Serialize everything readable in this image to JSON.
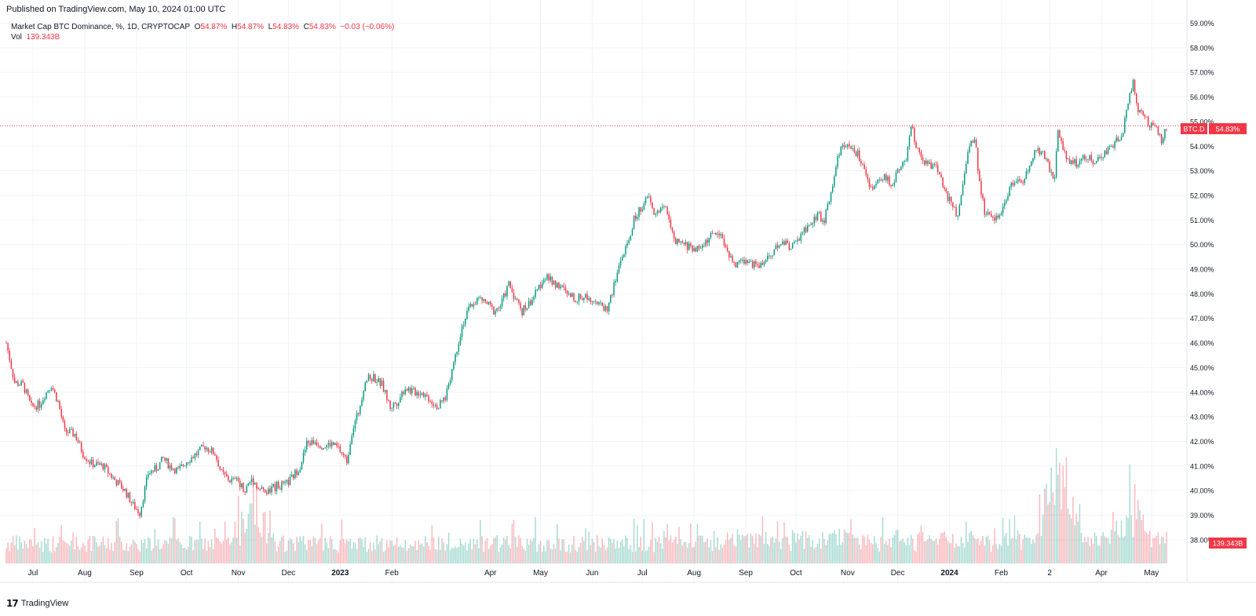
{
  "header": {
    "published": "Published on TradingView.com, May 10, 2024 01:00 UTC"
  },
  "legend": {
    "title": "Market Cap BTC Dominance, %, 1D, CRYPTOCAP",
    "o_label": "O",
    "o_value": "54.87%",
    "h_label": "H",
    "h_value": "54.87%",
    "l_label": "L",
    "l_value": "54.83%",
    "c_label": "C",
    "c_value": "54.83%",
    "change": "−0.03 (−0.06%)",
    "vol_label": "Vol",
    "vol_value": "139.343B"
  },
  "price_badge": {
    "symbol": "BTC.D",
    "value": "54.83%"
  },
  "vol_badge": {
    "value": "139.343B"
  },
  "footer": {
    "logo": "TradingView"
  },
  "colors": {
    "up": "#089981",
    "down": "#f23645",
    "grid": "#f0f3fa"
  },
  "chart_data": {
    "type": "candlestick",
    "title": "Market Cap BTC Dominance, %, 1D, CRYPTOCAP",
    "ylim": [
      37.0,
      59.0
    ],
    "y_ticks": [
      "59.00%",
      "58.00%",
      "57.00%",
      "56.00%",
      "55.00%",
      "54.00%",
      "53.00%",
      "52.00%",
      "51.00%",
      "50.00%",
      "49.00%",
      "48.00%",
      "47.00%",
      "46.00%",
      "45.00%",
      "44.00%",
      "43.00%",
      "42.00%",
      "41.00%",
      "40.00%",
      "39.00%",
      "38.00%"
    ],
    "x_ticks": [
      "Jul",
      "Aug",
      "Sep",
      "Oct",
      "Nov",
      "Dec",
      "2023",
      "Feb",
      "Apr",
      "May",
      "Jun",
      "Jul",
      "Aug",
      "Sep",
      "Oct",
      "Nov",
      "Dec",
      "2024",
      "Feb",
      "2",
      "Apr",
      "May"
    ],
    "x_tick_bold": [
      "2023",
      "2024"
    ],
    "x_range": [
      "2022-06-15",
      "2024-05-10"
    ],
    "x_tick_dates": [
      "2022-07-01",
      "2022-08-01",
      "2022-09-01",
      "2022-10-01",
      "2022-11-01",
      "2022-12-01",
      "2023-01-01",
      "2023-02-01",
      "2023-04-01",
      "2023-05-01",
      "2023-06-01",
      "2023-07-01",
      "2023-08-01",
      "2023-09-01",
      "2023-10-01",
      "2023-11-01",
      "2023-12-01",
      "2024-01-01",
      "2024-02-01",
      "2024-03-01",
      "2024-04-01",
      "2024-05-01"
    ],
    "series": [
      {
        "name": "BTC.D",
        "close_points": [
          [
            "2022-06-15",
            46.0
          ],
          [
            "2022-06-20",
            44.4
          ],
          [
            "2022-06-25",
            44.3
          ],
          [
            "2022-06-30",
            43.4
          ],
          [
            "2022-07-05",
            43.5
          ],
          [
            "2022-07-08",
            43.9
          ],
          [
            "2022-07-12",
            44.3
          ],
          [
            "2022-07-16",
            43.6
          ],
          [
            "2022-07-20",
            42.4
          ],
          [
            "2022-07-26",
            42.3
          ],
          [
            "2022-07-31",
            41.5
          ],
          [
            "2022-08-05",
            41.1
          ],
          [
            "2022-08-12",
            41.0
          ],
          [
            "2022-08-18",
            40.5
          ],
          [
            "2022-08-25",
            40.0
          ],
          [
            "2022-08-30",
            39.4
          ],
          [
            "2022-09-03",
            39.1
          ],
          [
            "2022-09-08",
            40.7
          ],
          [
            "2022-09-13",
            40.9
          ],
          [
            "2022-09-17",
            41.3
          ],
          [
            "2022-09-21",
            41.0
          ],
          [
            "2022-09-26",
            40.8
          ],
          [
            "2022-10-01",
            41.2
          ],
          [
            "2022-10-07",
            41.5
          ],
          [
            "2022-10-12",
            41.8
          ],
          [
            "2022-10-18",
            41.5
          ],
          [
            "2022-10-22",
            40.7
          ],
          [
            "2022-10-27",
            40.4
          ],
          [
            "2022-11-01",
            40.4
          ],
          [
            "2022-11-05",
            40.0
          ],
          [
            "2022-11-09",
            40.5
          ],
          [
            "2022-11-13",
            40.1
          ],
          [
            "2022-11-18",
            39.9
          ],
          [
            "2022-11-24",
            40.2
          ],
          [
            "2022-11-29",
            40.2
          ],
          [
            "2022-12-03",
            40.5
          ],
          [
            "2022-12-08",
            41.0
          ],
          [
            "2022-12-12",
            41.9
          ],
          [
            "2022-12-17",
            42.0
          ],
          [
            "2022-12-22",
            41.8
          ],
          [
            "2022-12-27",
            41.9
          ],
          [
            "2022-12-31",
            41.7
          ],
          [
            "2023-01-05",
            41.2
          ],
          [
            "2023-01-08",
            42.4
          ],
          [
            "2023-01-12",
            43.2
          ],
          [
            "2023-01-16",
            44.5
          ],
          [
            "2023-01-21",
            44.6
          ],
          [
            "2023-01-26",
            44.3
          ],
          [
            "2023-01-31",
            43.4
          ],
          [
            "2023-02-04",
            43.6
          ],
          [
            "2023-02-09",
            44.2
          ],
          [
            "2023-02-14",
            44.0
          ],
          [
            "2023-02-19",
            44.0
          ],
          [
            "2023-02-24",
            43.7
          ],
          [
            "2023-03-01",
            43.4
          ],
          [
            "2023-03-05",
            43.8
          ],
          [
            "2023-03-11",
            45.5
          ],
          [
            "2023-03-15",
            46.7
          ],
          [
            "2023-03-20",
            47.5
          ],
          [
            "2023-03-25",
            47.8
          ],
          [
            "2023-03-30",
            47.6
          ],
          [
            "2023-04-03",
            47.3
          ],
          [
            "2023-04-07",
            47.5
          ],
          [
            "2023-04-12",
            48.4
          ],
          [
            "2023-04-16",
            47.8
          ],
          [
            "2023-04-20",
            47.3
          ],
          [
            "2023-04-24",
            47.6
          ],
          [
            "2023-04-29",
            48.1
          ],
          [
            "2023-05-03",
            48.7
          ],
          [
            "2023-05-08",
            48.5
          ],
          [
            "2023-05-13",
            48.3
          ],
          [
            "2023-05-18",
            47.9
          ],
          [
            "2023-05-23",
            47.8
          ],
          [
            "2023-05-28",
            47.9
          ],
          [
            "2023-06-02",
            47.8
          ],
          [
            "2023-06-06",
            47.5
          ],
          [
            "2023-06-10",
            47.4
          ],
          [
            "2023-06-14",
            48.3
          ],
          [
            "2023-06-18",
            49.4
          ],
          [
            "2023-06-22",
            49.9
          ],
          [
            "2023-06-26",
            51.0
          ],
          [
            "2023-07-01",
            51.6
          ],
          [
            "2023-07-05",
            51.9
          ],
          [
            "2023-07-08",
            51.2
          ],
          [
            "2023-07-12",
            51.5
          ],
          [
            "2023-07-16",
            51.4
          ],
          [
            "2023-07-20",
            50.1
          ],
          [
            "2023-07-25",
            50.0
          ],
          [
            "2023-07-30",
            49.9
          ],
          [
            "2023-08-04",
            49.8
          ],
          [
            "2023-08-09",
            50.2
          ],
          [
            "2023-08-14",
            50.5
          ],
          [
            "2023-08-18",
            50.3
          ],
          [
            "2023-08-21",
            49.7
          ],
          [
            "2023-08-25",
            49.1
          ],
          [
            "2023-08-29",
            49.4
          ],
          [
            "2023-09-03",
            49.3
          ],
          [
            "2023-09-08",
            49.1
          ],
          [
            "2023-09-13",
            49.4
          ],
          [
            "2023-09-18",
            49.8
          ],
          [
            "2023-09-23",
            50.1
          ],
          [
            "2023-09-28",
            49.9
          ],
          [
            "2023-10-03",
            50.2
          ],
          [
            "2023-10-08",
            50.8
          ],
          [
            "2023-10-14",
            51.2
          ],
          [
            "2023-10-18",
            51.0
          ],
          [
            "2023-10-22",
            52.1
          ],
          [
            "2023-10-26",
            53.6
          ],
          [
            "2023-10-30",
            54.1
          ],
          [
            "2023-11-03",
            53.8
          ],
          [
            "2023-11-07",
            53.7
          ],
          [
            "2023-11-11",
            53.0
          ],
          [
            "2023-11-15",
            52.3
          ],
          [
            "2023-11-19",
            52.5
          ],
          [
            "2023-11-23",
            52.7
          ],
          [
            "2023-11-28",
            52.5
          ],
          [
            "2023-12-02",
            53.2
          ],
          [
            "2023-12-06",
            53.3
          ],
          [
            "2023-12-09",
            54.9
          ],
          [
            "2023-12-12",
            53.9
          ],
          [
            "2023-12-16",
            53.3
          ],
          [
            "2023-12-20",
            53.2
          ],
          [
            "2023-12-24",
            53.4
          ],
          [
            "2023-12-28",
            52.3
          ],
          [
            "2024-01-02",
            51.7
          ],
          [
            "2024-01-06",
            51.1
          ],
          [
            "2024-01-09",
            52.3
          ],
          [
            "2024-01-12",
            53.9
          ],
          [
            "2024-01-16",
            54.4
          ],
          [
            "2024-01-19",
            52.5
          ],
          [
            "2024-01-22",
            51.3
          ],
          [
            "2024-01-27",
            51.1
          ],
          [
            "2024-02-01",
            51.3
          ],
          [
            "2024-02-06",
            52.3
          ],
          [
            "2024-02-10",
            52.5
          ],
          [
            "2024-02-15",
            52.7
          ],
          [
            "2024-02-19",
            53.5
          ],
          [
            "2024-02-23",
            53.9
          ],
          [
            "2024-02-27",
            53.6
          ],
          [
            "2024-03-01",
            53.0
          ],
          [
            "2024-03-04",
            52.6
          ],
          [
            "2024-03-06",
            54.7
          ],
          [
            "2024-03-09",
            53.9
          ],
          [
            "2024-03-13",
            53.3
          ],
          [
            "2024-03-18",
            53.3
          ],
          [
            "2024-03-23",
            53.6
          ],
          [
            "2024-03-28",
            53.4
          ],
          [
            "2024-04-02",
            53.6
          ],
          [
            "2024-04-06",
            53.9
          ],
          [
            "2024-04-11",
            54.3
          ],
          [
            "2024-04-14",
            54.7
          ],
          [
            "2024-04-17",
            55.7
          ],
          [
            "2024-04-20",
            56.6
          ],
          [
            "2024-04-23",
            55.4
          ],
          [
            "2024-04-27",
            55.2
          ],
          [
            "2024-05-01",
            54.8
          ],
          [
            "2024-05-05",
            54.6
          ],
          [
            "2024-05-07",
            54.1
          ],
          [
            "2024-05-10",
            54.83
          ]
        ]
      }
    ],
    "volume": {
      "label": "Vol",
      "last": "139.343B",
      "spike_dates": [
        "2022-11-09",
        "2024-03-05",
        "2024-03-08",
        "2024-04-18"
      ]
    },
    "last_price_line": 54.83,
    "grid": true,
    "legend_position": "top-left"
  }
}
